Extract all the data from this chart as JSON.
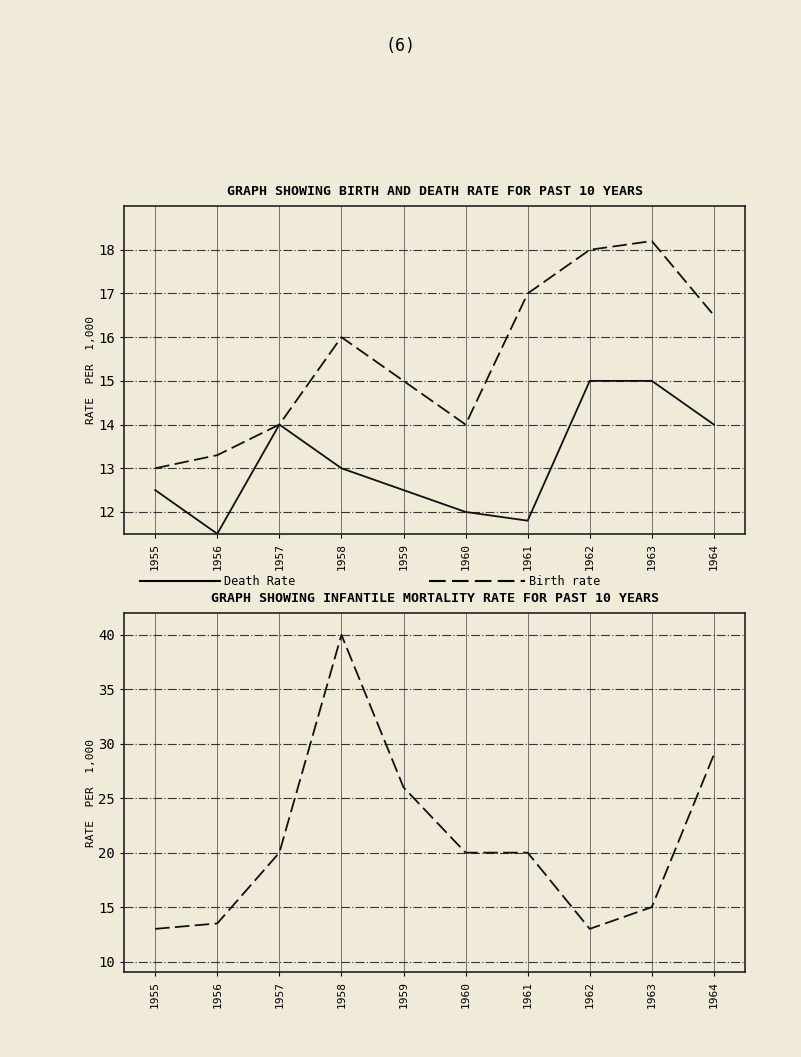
{
  "title1": "GRAPH SHOWING BIRTH AND DEATH RATE FOR PAST 10 YEARS",
  "title2": "GRAPH SHOWING INFANTILE MORTALITY RATE FOR PAST 10 YEARS",
  "years": [
    1955,
    1956,
    1957,
    1958,
    1959,
    1960,
    1961,
    1962,
    1963,
    1964
  ],
  "death_rate": [
    12.5,
    11.5,
    14.0,
    13.0,
    12.5,
    12.0,
    11.8,
    15.0,
    15.0,
    14.0
  ],
  "birth_rate": [
    13.0,
    13.3,
    14.0,
    16.0,
    15.0,
    14.0,
    17.0,
    18.0,
    18.2,
    16.5
  ],
  "infant_mortality": [
    13.0,
    13.5,
    20.0,
    40.0,
    26.0,
    20.0,
    20.0,
    13.0,
    15.0,
    29.0
  ],
  "chart1_ylim_low": 11.5,
  "chart1_ylim_high": 19.0,
  "chart1_yticks": [
    12,
    13,
    14,
    15,
    16,
    17,
    18
  ],
  "chart2_ylim_low": 9.0,
  "chart2_ylim_high": 42.0,
  "chart2_yticks": [
    10,
    15,
    20,
    25,
    30,
    35,
    40
  ],
  "bg_color": "#f0ead8",
  "grid_color": "#222222",
  "line_color": "#111111",
  "ylabel_chars": [
    "R",
    "A",
    "T",
    "E",
    " ",
    "P",
    "E",
    "R",
    " ",
    "1",
    ",",
    "0",
    "0",
    "0"
  ],
  "legend_death": "Death Rate",
  "legend_birth": "Birth rate",
  "page_label": "(6)"
}
